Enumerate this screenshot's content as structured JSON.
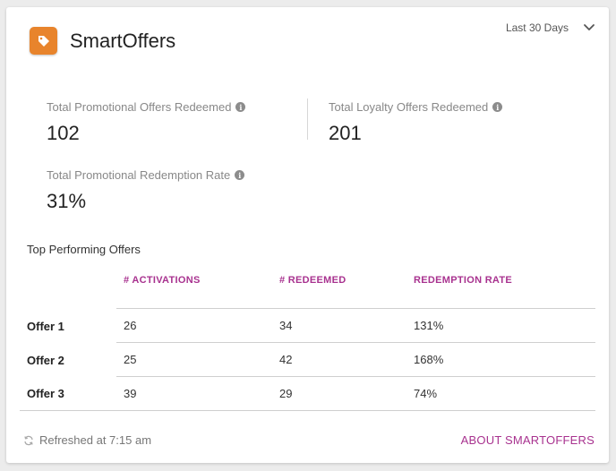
{
  "colors": {
    "accent": "#a8328f",
    "brand_orange": "#e8842c"
  },
  "header": {
    "title": "SmartOffers",
    "icon": "tag-icon",
    "range": {
      "selected": "Last 30 Days",
      "icon": "chevron-down-icon"
    }
  },
  "stats": {
    "promo_redeemed": {
      "label": "Total Promotional Offers Redeemed",
      "value": "102"
    },
    "loyalty_redeemed": {
      "label": "Total Loyalty Offers Redeemed",
      "value": "201"
    },
    "promo_rate": {
      "label": "Total Promotional Redemption Rate",
      "value": "31%"
    }
  },
  "table": {
    "title": "Top Performing Offers",
    "columns": [
      "# ACTIVATIONS",
      "# REDEEMED",
      "REDEMPTION RATE"
    ],
    "rows": [
      {
        "name": "Offer 1",
        "activations": "26",
        "redeemed": "34",
        "rate": "131%"
      },
      {
        "name": "Offer 2",
        "activations": "25",
        "redeemed": "42",
        "rate": "168%"
      },
      {
        "name": "Offer 3",
        "activations": "39",
        "redeemed": "29",
        "rate": "74%"
      }
    ]
  },
  "footer": {
    "refreshed": "Refreshed at 7:15 am",
    "about_link": "ABOUT SMARTOFFERS"
  }
}
